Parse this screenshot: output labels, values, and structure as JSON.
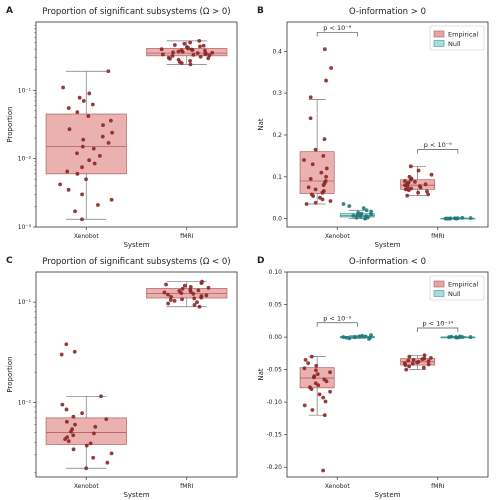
{
  "chart_data": [
    {
      "panel": "A",
      "type": "box-strip",
      "title": "Proportion of significant subsystems (Ω > 0)",
      "xlabel": "System",
      "ylabel": "Proportion",
      "yscale": "log",
      "ylim": [
        0.001,
        1.0
      ],
      "yticks": [
        {
          "v": 0.1,
          "label": "10⁻¹"
        },
        {
          "v": 0.01,
          "label": "10⁻²"
        },
        {
          "v": 0.001,
          "label": "10⁻³"
        }
      ],
      "categories": [
        "Xenobot",
        "fMRI"
      ],
      "boxes": [
        {
          "category": "Xenobot",
          "whisker_low": 0.0013,
          "q1": 0.006,
          "median": 0.015,
          "q3": 0.045,
          "whisker_high": 0.19
        },
        {
          "category": "fMRI",
          "whisker_low": 0.24,
          "q1": 0.32,
          "median": 0.35,
          "q3": 0.41,
          "whisker_high": 0.53
        }
      ],
      "points": [
        {
          "category": "Xenobot",
          "values": [
            0.19,
            0.11,
            0.09,
            0.078,
            0.07,
            0.062,
            0.055,
            0.048,
            0.042,
            0.036,
            0.031,
            0.027,
            0.024,
            0.021,
            0.019,
            0.017,
            0.015,
            0.014,
            0.012,
            0.011,
            0.0095,
            0.0085,
            0.0075,
            0.0065,
            0.006,
            0.005,
            0.0042,
            0.0035,
            0.003,
            0.0025,
            0.0021,
            0.0017,
            0.0013
          ]
        },
        {
          "category": "fMRI",
          "values": [
            0.53,
            0.5,
            0.48,
            0.46,
            0.45,
            0.44,
            0.43,
            0.42,
            0.41,
            0.4,
            0.395,
            0.39,
            0.385,
            0.38,
            0.37,
            0.365,
            0.36,
            0.355,
            0.35,
            0.345,
            0.34,
            0.335,
            0.33,
            0.325,
            0.32,
            0.31,
            0.3,
            0.295,
            0.29,
            0.28,
            0.27,
            0.26,
            0.25,
            0.24
          ]
        }
      ]
    },
    {
      "panel": "B",
      "type": "box-strip",
      "title": "O-information > 0",
      "xlabel": "System",
      "ylabel": "Nat",
      "ylim": [
        -0.02,
        0.47
      ],
      "yticks": [
        {
          "v": 0.0,
          "label": "0.0"
        },
        {
          "v": 0.1,
          "label": "0.1"
        },
        {
          "v": 0.2,
          "label": "0.2"
        },
        {
          "v": 0.3,
          "label": "0.3"
        },
        {
          "v": 0.4,
          "label": "0.4"
        }
      ],
      "categories": [
        "Xenobot",
        "fMRI"
      ],
      "series": [
        "Empirical",
        "Null"
      ],
      "legend": {
        "position": "top-right",
        "entries": [
          {
            "label": "Empirical",
            "color": "#e8a3a3",
            "edge": "#b06060"
          },
          {
            "label": "Null",
            "color": "#a8dcdc",
            "edge": "#3a9a9a"
          }
        ]
      },
      "boxes": [
        {
          "category": "Xenobot",
          "series": "Empirical",
          "whisker_low": 0.035,
          "q1": 0.06,
          "median": 0.09,
          "q3": 0.16,
          "whisker_high": 0.285
        },
        {
          "category": "Xenobot",
          "series": "Null",
          "whisker_low": 0.0,
          "q1": 0.004,
          "median": 0.007,
          "q3": 0.012,
          "whisker_high": 0.02
        },
        {
          "category": "fMRI",
          "series": "Empirical",
          "whisker_low": 0.055,
          "q1": 0.07,
          "median": 0.08,
          "q3": 0.093,
          "whisker_high": 0.125
        },
        {
          "category": "fMRI",
          "series": "Null",
          "whisker_low": 0.0,
          "q1": 0.0,
          "median": 0.0,
          "q3": 0.001,
          "whisker_high": 0.002
        }
      ],
      "points": [
        {
          "category": "Xenobot",
          "series": "Empirical",
          "values": [
            0.405,
            0.36,
            0.33,
            0.29,
            0.24,
            0.19,
            0.165,
            0.15,
            0.14,
            0.13,
            0.12,
            0.11,
            0.1,
            0.095,
            0.09,
            0.085,
            0.08,
            0.075,
            0.07,
            0.066,
            0.062,
            0.058,
            0.054,
            0.05,
            0.046,
            0.042,
            0.038,
            0.035
          ]
        },
        {
          "category": "Xenobot",
          "series": "Null",
          "values": [
            0.035,
            0.03,
            0.025,
            0.02,
            0.017,
            0.014,
            0.012,
            0.01,
            0.009,
            0.008,
            0.007,
            0.006,
            0.005,
            0.004,
            0.003,
            0.002,
            0.001,
            0.0
          ]
        },
        {
          "category": "fMRI",
          "series": "Empirical",
          "values": [
            0.125,
            0.115,
            0.105,
            0.1,
            0.096,
            0.093,
            0.09,
            0.088,
            0.086,
            0.084,
            0.082,
            0.08,
            0.078,
            0.076,
            0.074,
            0.072,
            0.07,
            0.068,
            0.065,
            0.062,
            0.058,
            0.055
          ]
        },
        {
          "category": "fMRI",
          "series": "Null",
          "values": [
            0.002,
            0.0015,
            0.001,
            0.001,
            0.0005,
            0.0005,
            0.0,
            0.0,
            0.0,
            0.0,
            0.0,
            0.0
          ]
        }
      ],
      "annotations": [
        {
          "category": "Xenobot",
          "label": "p < 10⁻⁹",
          "y": 0.445
        },
        {
          "category": "fMRI",
          "label": "p < 10⁻⁹",
          "y": 0.165
        }
      ]
    },
    {
      "panel": "C",
      "type": "box-strip",
      "title": "Proportion of significant subsystems (Ω < 0)",
      "xlabel": "System",
      "ylabel": "Proportion",
      "yscale": "log",
      "ylim": [
        0.0018,
        0.2
      ],
      "yticks": [
        {
          "v": 0.1,
          "label": "10⁻¹"
        },
        {
          "v": 0.01,
          "label": "10⁻²"
        }
      ],
      "categories": [
        "Xenobot",
        "fMRI"
      ],
      "boxes": [
        {
          "category": "Xenobot",
          "whisker_low": 0.0022,
          "q1": 0.0038,
          "median": 0.005,
          "q3": 0.007,
          "whisker_high": 0.0115
        },
        {
          "category": "fMRI",
          "whisker_low": 0.09,
          "q1": 0.11,
          "median": 0.122,
          "q3": 0.137,
          "whisker_high": 0.16
        }
      ],
      "points": [
        {
          "category": "Xenobot",
          "values": [
            0.038,
            0.032,
            0.03,
            0.0115,
            0.0095,
            0.0085,
            0.0078,
            0.0072,
            0.0068,
            0.0064,
            0.006,
            0.0057,
            0.0054,
            0.0051,
            0.0049,
            0.0047,
            0.0045,
            0.0043,
            0.0041,
            0.0039,
            0.0037,
            0.0034,
            0.0031,
            0.0028,
            0.0025,
            0.0022
          ]
        },
        {
          "category": "fMRI",
          "values": [
            0.16,
            0.155,
            0.15,
            0.146,
            0.142,
            0.139,
            0.136,
            0.133,
            0.131,
            0.129,
            0.127,
            0.125,
            0.123,
            0.121,
            0.119,
            0.117,
            0.115,
            0.113,
            0.111,
            0.109,
            0.107,
            0.105,
            0.103,
            0.1,
            0.097,
            0.094,
            0.09
          ]
        }
      ]
    },
    {
      "panel": "D",
      "type": "box-strip",
      "title": "O-information < 0",
      "xlabel": "System",
      "ylabel": "Nat",
      "ylim": [
        -0.215,
        0.1
      ],
      "yticks": [
        {
          "v": 0.1,
          "label": "0.10"
        },
        {
          "v": 0.05,
          "label": "0.05"
        },
        {
          "v": 0.0,
          "label": "0.00"
        },
        {
          "v": -0.05,
          "label": "-0.05"
        },
        {
          "v": -0.1,
          "label": "-0.10"
        },
        {
          "v": -0.15,
          "label": "-0.15"
        },
        {
          "v": -0.2,
          "label": "-0.20"
        }
      ],
      "categories": [
        "Xenobot",
        "fMRI"
      ],
      "series": [
        "Empirical",
        "Null"
      ],
      "legend": {
        "position": "top-right",
        "entries": [
          {
            "label": "Empirical",
            "color": "#e8a3a3",
            "edge": "#b06060"
          },
          {
            "label": "Null",
            "color": "#a8dcdc",
            "edge": "#3a9a9a"
          }
        ]
      },
      "boxes": [
        {
          "category": "Xenobot",
          "series": "Empirical",
          "whisker_low": -0.12,
          "q1": -0.078,
          "median": -0.063,
          "q3": -0.047,
          "whisker_high": -0.03
        },
        {
          "category": "Xenobot",
          "series": "Null",
          "whisker_low": -0.002,
          "q1": -0.001,
          "median": 0.0,
          "q3": 0.001,
          "whisker_high": 0.002
        },
        {
          "category": "fMRI",
          "series": "Empirical",
          "whisker_low": -0.05,
          "q1": -0.043,
          "median": -0.038,
          "q3": -0.033,
          "whisker_high": -0.028
        },
        {
          "category": "fMRI",
          "series": "Null",
          "whisker_low": -0.001,
          "q1": 0.0,
          "median": 0.0,
          "q3": 0.0,
          "whisker_high": 0.001
        }
      ],
      "points": [
        {
          "category": "Xenobot",
          "series": "Empirical",
          "values": [
            -0.03,
            -0.035,
            -0.04,
            -0.044,
            -0.048,
            -0.051,
            -0.054,
            -0.057,
            -0.06,
            -0.062,
            -0.065,
            -0.068,
            -0.071,
            -0.074,
            -0.077,
            -0.08,
            -0.084,
            -0.088,
            -0.093,
            -0.099,
            -0.105,
            -0.112,
            -0.12,
            -0.205
          ]
        },
        {
          "category": "Xenobot",
          "series": "Null",
          "values": [
            0.003,
            0.002,
            0.001,
            0.001,
            0.0,
            0.0,
            0.0,
            -0.001,
            -0.001,
            -0.002,
            -0.003
          ]
        },
        {
          "category": "fMRI",
          "series": "Empirical",
          "values": [
            -0.028,
            -0.03,
            -0.032,
            -0.033,
            -0.034,
            -0.035,
            -0.036,
            -0.037,
            -0.038,
            -0.039,
            -0.04,
            -0.041,
            -0.042,
            -0.043,
            -0.045,
            -0.047,
            -0.05
          ]
        },
        {
          "category": "fMRI",
          "series": "Null",
          "values": [
            0.001,
            0.0005,
            0.0,
            0.0,
            0.0,
            0.0,
            -0.0005,
            -0.001
          ]
        }
      ],
      "annotations": [
        {
          "category": "Xenobot",
          "label": "p < 10⁻⁹",
          "y": 0.022
        },
        {
          "category": "fMRI",
          "label": "p < 10⁻¹⁴",
          "y": 0.014
        }
      ]
    }
  ],
  "colors": {
    "empirical_fill": "#e8a3a3",
    "empirical_edge": "#b06060",
    "empirical_point": "#8b2525",
    "null_fill": "#a8dcdc",
    "null_edge": "#3a9a9a",
    "null_point": "#1f7a7a",
    "single_fill": "#e8a3a3",
    "single_edge": "#b06060"
  }
}
